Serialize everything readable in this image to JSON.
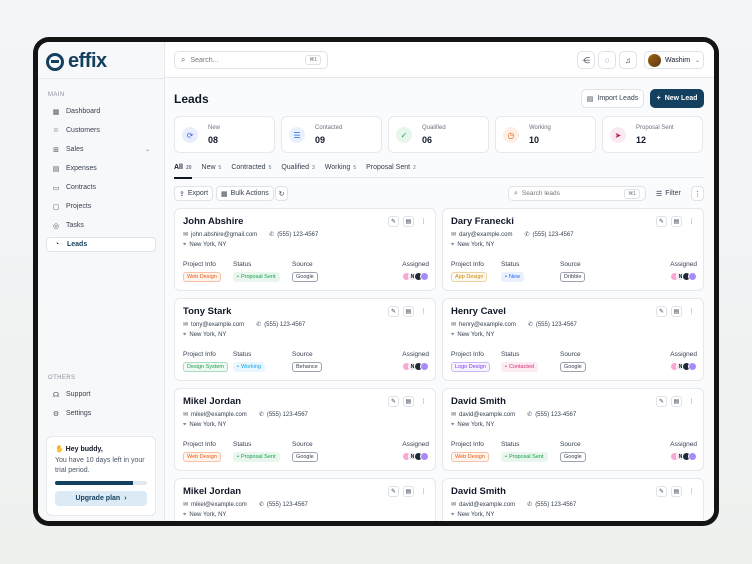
{
  "app": {
    "name": "effix"
  },
  "sidebar": {
    "main_label": "MAIN",
    "others_label": "OTHERS",
    "items": [
      {
        "label": "Dashboard",
        "icon": "grid-icon"
      },
      {
        "label": "Customers",
        "icon": "users-icon"
      },
      {
        "label": "Sales",
        "icon": "cart-icon"
      },
      {
        "label": "Expenses",
        "icon": "receipt-icon"
      },
      {
        "label": "Contracts",
        "icon": "file-icon"
      },
      {
        "label": "Projects",
        "icon": "folder-icon"
      },
      {
        "label": "Tasks",
        "icon": "check-circle-icon"
      },
      {
        "label": "Leads",
        "icon": "target-icon"
      }
    ],
    "others": [
      {
        "label": "Support",
        "icon": "headset-icon"
      },
      {
        "label": "Settings",
        "icon": "gear-icon"
      }
    ],
    "trial": {
      "title": "✋ Hey buddy,",
      "text": "You have 10 days left in your trial period.",
      "progress": 0.85,
      "button": "Upgrade plan"
    }
  },
  "topbar": {
    "search_placeholder": "Search...",
    "search_kbd": "⌘1",
    "user_name": "Washim"
  },
  "page": {
    "title": "Leads",
    "import_label": "Import Leads",
    "new_lead_label": "New Lead"
  },
  "stats": [
    {
      "label": "New",
      "value": "08",
      "color": "#e9eefc",
      "fg": "#3b5bdb",
      "glyph": "⟳"
    },
    {
      "label": "Contacted",
      "value": "09",
      "color": "#e8f1fb",
      "fg": "#2563eb",
      "glyph": "☰"
    },
    {
      "label": "Qualified",
      "value": "06",
      "color": "#e7f6ec",
      "fg": "#16a34a",
      "glyph": "✓"
    },
    {
      "label": "Working",
      "value": "10",
      "color": "#fdeee6",
      "fg": "#ea580c",
      "glyph": "◷"
    },
    {
      "label": "Proposal Sent",
      "value": "12",
      "color": "#fbe9f2",
      "fg": "#be185d",
      "glyph": "➤"
    }
  ],
  "tabs": [
    {
      "label": "All",
      "count": "20"
    },
    {
      "label": "New",
      "count": "5"
    },
    {
      "label": "Contracted",
      "count": "5"
    },
    {
      "label": "Qualified",
      "count": "3"
    },
    {
      "label": "Working",
      "count": "5"
    },
    {
      "label": "Proposal Sent",
      "count": "2"
    }
  ],
  "toolbar": {
    "export_label": "Export",
    "bulk_label": "Bulk Actions",
    "search_placeholder": "Search leads",
    "search_kbd": "⌘1",
    "filter_label": "Filter"
  },
  "card_labels": {
    "project": "Project Info",
    "status": "Status",
    "source": "Source",
    "assigned": "Assigned"
  },
  "leads": [
    {
      "name": "John Abshire",
      "email": "john.abshire@gmail.com",
      "phone": "(555) 123-4567",
      "location": "New York, NY",
      "project": "Web Design",
      "status": "Proposal Sent",
      "source": "Google"
    },
    {
      "name": "Dary Franecki",
      "email": "dary@example.com",
      "phone": "(555) 123-4567",
      "location": "New York, NY",
      "project": "App Design",
      "status": "New",
      "source": "Dribble"
    },
    {
      "name": "Tony Stark",
      "email": "tony@example.com",
      "phone": "(555) 123-4567",
      "location": "New York, NY",
      "project": "Design System",
      "status": "Working",
      "source": "Behance"
    },
    {
      "name": "Henry Cavel",
      "email": "henry@example.com",
      "phone": "(555) 123-4567",
      "location": "New York, NY",
      "project": "Logo Design",
      "status": "Contacted",
      "source": "Google"
    },
    {
      "name": "Mikel Jordan",
      "email": "mikel@example.com",
      "phone": "(555) 123-4567",
      "location": "New York, NY",
      "project": "Web Design",
      "status": "Proposal Sent",
      "source": "Google"
    },
    {
      "name": "David Smith",
      "email": "david@example.com",
      "phone": "(555) 123-4567",
      "location": "New York, NY",
      "project": "Web Design",
      "status": "Proposal Sent",
      "source": "Google"
    },
    {
      "name": "Mikel Jordan",
      "email": "mikel@example.com",
      "phone": "(555) 123-4567",
      "location": "New York, NY",
      "project": "",
      "status": "",
      "source": ""
    },
    {
      "name": "David Smith",
      "email": "david@example.com",
      "phone": "(555) 123-4567",
      "location": "New York, NY",
      "project": "",
      "status": "",
      "source": ""
    }
  ],
  "chip_colors": {
    "Web Design": "#ea580c",
    "App Design": "#ca8a04",
    "Design System": "#16a34a",
    "Logo Design": "#7c3aed",
    "Proposal Sent": "#16a34a",
    "New": "#2563eb",
    "Working": "#0ea5e9",
    "Contacted": "#db2777"
  }
}
